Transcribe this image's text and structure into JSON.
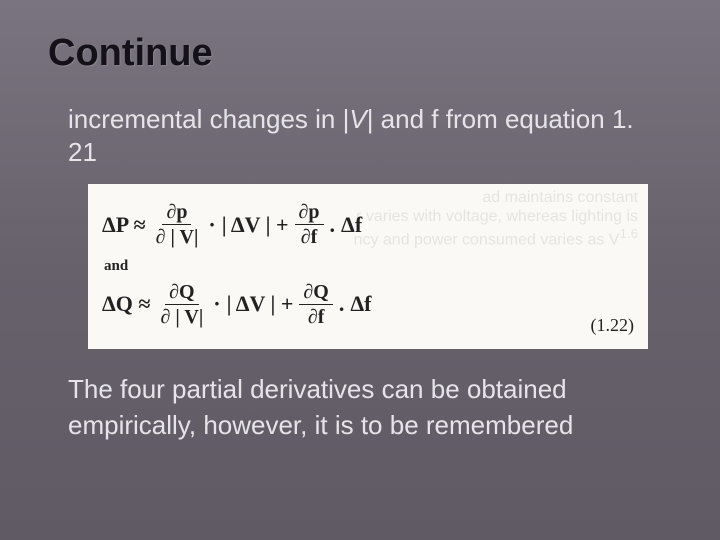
{
  "title": "Continue",
  "intro_prefix": "incremental changes in |",
  "intro_var": "V",
  "intro_suffix": "| and f from equation 1. 21",
  "equations": {
    "bg": "#faf9f6",
    "text_color": "#222222",
    "font_family": "Times New Roman",
    "eq1": {
      "lhs": "ΔP ≈",
      "term1_num": "∂p",
      "term1_den": "∂ | V|",
      "dot1": "·",
      "mid": "| ΔV | +",
      "term2_num": "∂p",
      "term2_den": "∂f",
      "dot2": ".",
      "tail": "Δf"
    },
    "and_label": "and",
    "eq2": {
      "lhs": "ΔQ ≈",
      "term1_num": "∂Q",
      "term1_den": "∂ | V|",
      "dot1": "·",
      "mid": "| ΔV | +",
      "term2_num": "∂Q",
      "term2_den": "∂f",
      "dot2": ".",
      "tail": "Δf"
    },
    "eq_number": "(1.22)"
  },
  "outro_line1": "The four partial derivatives can be obtained",
  "outro_line2": "empirically, however, it is to be remembered",
  "colors": {
    "slide_bg_top": "#7a7480",
    "slide_bg_mid": "#67616c",
    "slide_bg_bottom": "#605a65",
    "title_color": "#141218",
    "body_color": "#e6e4e8"
  }
}
